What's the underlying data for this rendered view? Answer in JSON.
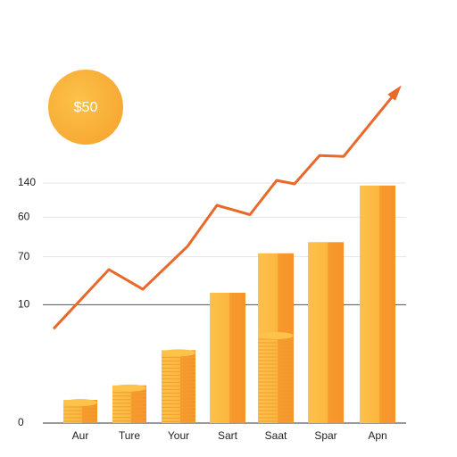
{
  "chart_data": {
    "type": "bar",
    "badge": "$50",
    "categories": [
      "Aur",
      "Ture",
      "Your",
      "Sart",
      "Saat",
      "Spar",
      "Apn"
    ],
    "values": [
      13.5,
      22,
      42.5,
      76,
      99,
      105.5,
      138.5
    ],
    "color": "#f8b93c",
    "trend": {
      "color": "#e8692a",
      "values": [
        55,
        89.5,
        78,
        103,
        127,
        121.5,
        141.5,
        139.5,
        156,
        155.5,
        194.5
      ]
    },
    "ylim": [
      0,
      140
    ],
    "yticks": [
      0,
      {
        "value": 69,
        "label": "10"
      },
      {
        "value": 97,
        "label": "70"
      },
      {
        "value": 120,
        "label": "60"
      },
      140
    ],
    "grid": true
  }
}
